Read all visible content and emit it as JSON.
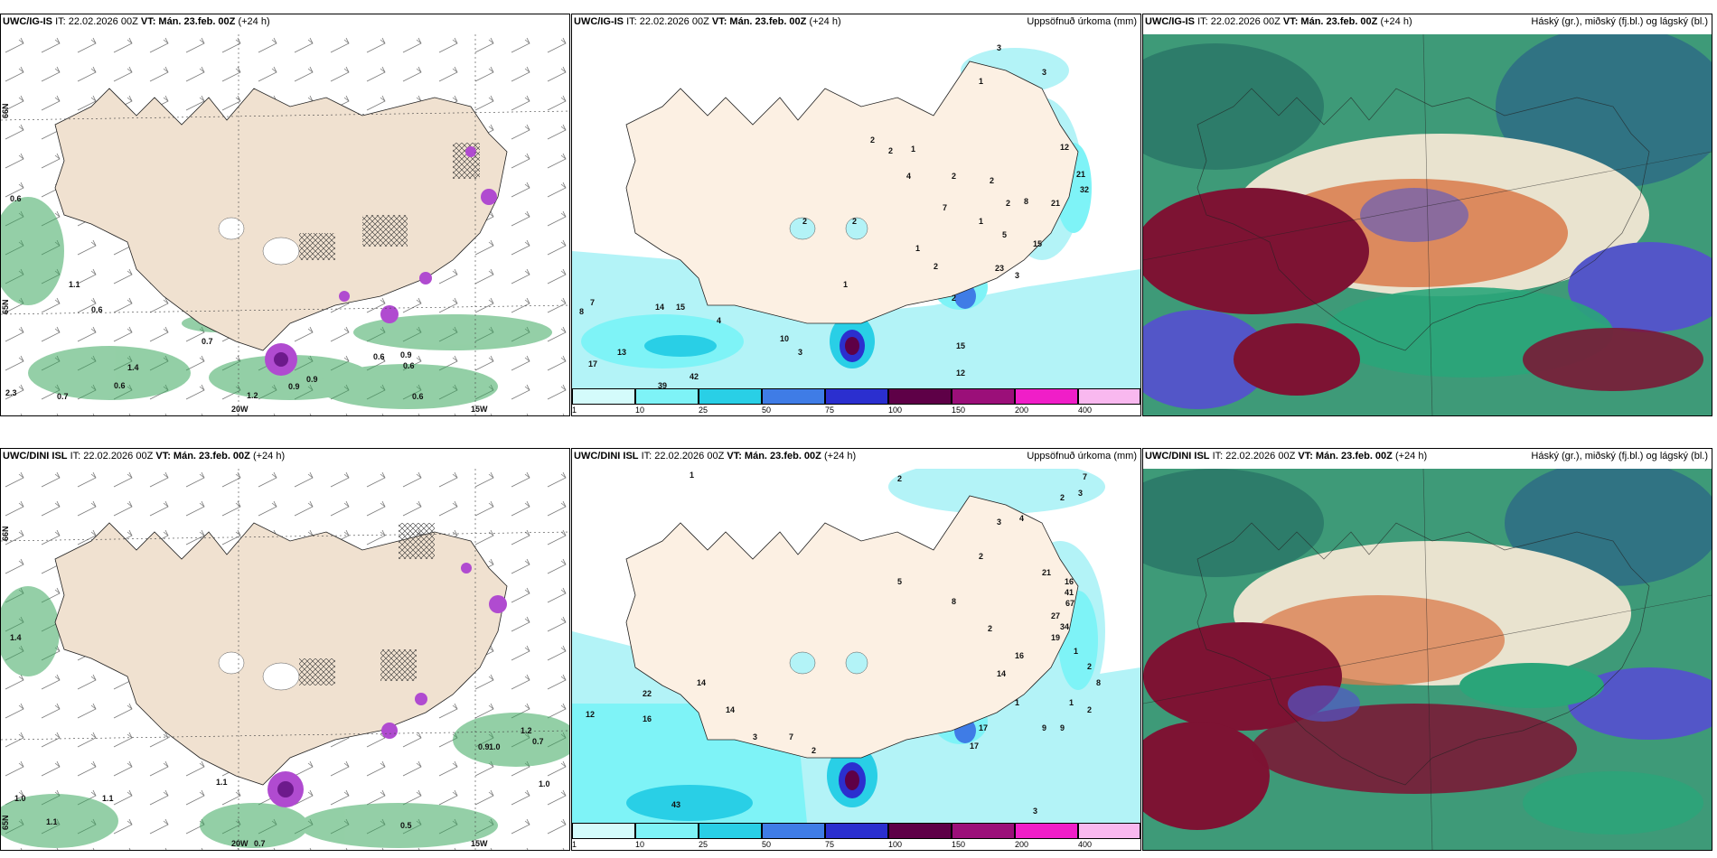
{
  "rows": [
    {
      "model": "UWC/IG-IS",
      "it": "IT: 22.02.2026 00Z",
      "vt": "VT: Mán. 23.feb. 00Z",
      "lead": "(+24 h)",
      "panel1_labels": [
        "0.6",
        "1.1",
        "0.6",
        "0.7",
        "1.4",
        "0.6",
        "2.3",
        "0.7",
        "1.2",
        "0.9",
        "0.9",
        "0.6",
        "0.9",
        "0.6",
        "0.6"
      ],
      "panel2_numbers": [
        "3",
        "1",
        "3",
        "2",
        "2",
        "1",
        "4",
        "2",
        "12",
        "2",
        "21",
        "32",
        "7",
        "1",
        "2",
        "8",
        "21",
        "1",
        "5",
        "15",
        "2",
        "23",
        "3",
        "2",
        "15",
        "12",
        "17",
        "13",
        "42",
        "39",
        "14",
        "15",
        "10",
        "4",
        "8",
        "7",
        "3",
        "2",
        "2",
        "1"
      ],
      "axis": {
        "lat_top": "66N",
        "lat_bottom": "65N",
        "lon_left": "20W",
        "lon_right": "15W"
      }
    },
    {
      "model": "UWC/DINI ISL",
      "it": "IT: 22.02.2026 00Z",
      "vt": "VT: Mán. 23.feb. 00Z",
      "lead": "(+24 h)",
      "panel1_labels": [
        "1.4",
        "1.1",
        "1.0",
        "1.1",
        "1.1",
        "0.7",
        "0.5",
        "1.2",
        "0.7",
        "0.9",
        "1.0",
        "1.0"
      ],
      "panel2_numbers": [
        "1",
        "2",
        "3",
        "2",
        "7",
        "3",
        "4",
        "2",
        "21",
        "16",
        "41",
        "67",
        "27",
        "34",
        "19",
        "1",
        "2",
        "8",
        "5",
        "8",
        "2",
        "16",
        "14",
        "22",
        "12",
        "16",
        "14",
        "14",
        "7",
        "43",
        "2",
        "17",
        "17",
        "9",
        "9",
        "2",
        "3",
        "1",
        "1",
        "3"
      ],
      "axis": {
        "lat_top": "66N",
        "lat_bottom": "65N",
        "lon_left": "20W",
        "lon_right": "15W"
      }
    }
  ],
  "precip_title": "Uppsöfnuð úrkoma (mm)",
  "cloud_title": "Háský (gr.), miðský (fj.bl.) og lágský (bl.)",
  "legend": {
    "ticks": [
      "1",
      "10",
      "25",
      "50",
      "75",
      "100",
      "150",
      "200",
      "400"
    ],
    "colors": [
      "#d4fbfb",
      "#7ef3f7",
      "#29cfe6",
      "#3f7ce6",
      "#2b2fcf",
      "#5e0047",
      "#9b0f79",
      "#f01ec8",
      "#f9b8ef"
    ]
  },
  "colors": {
    "land": "#f4e6d8",
    "ocean_precip": "#b3f3f7",
    "cloud_high": "#3bbf8a",
    "cloud_mid": "#7d1333",
    "cloud_low": "#5356c8"
  }
}
